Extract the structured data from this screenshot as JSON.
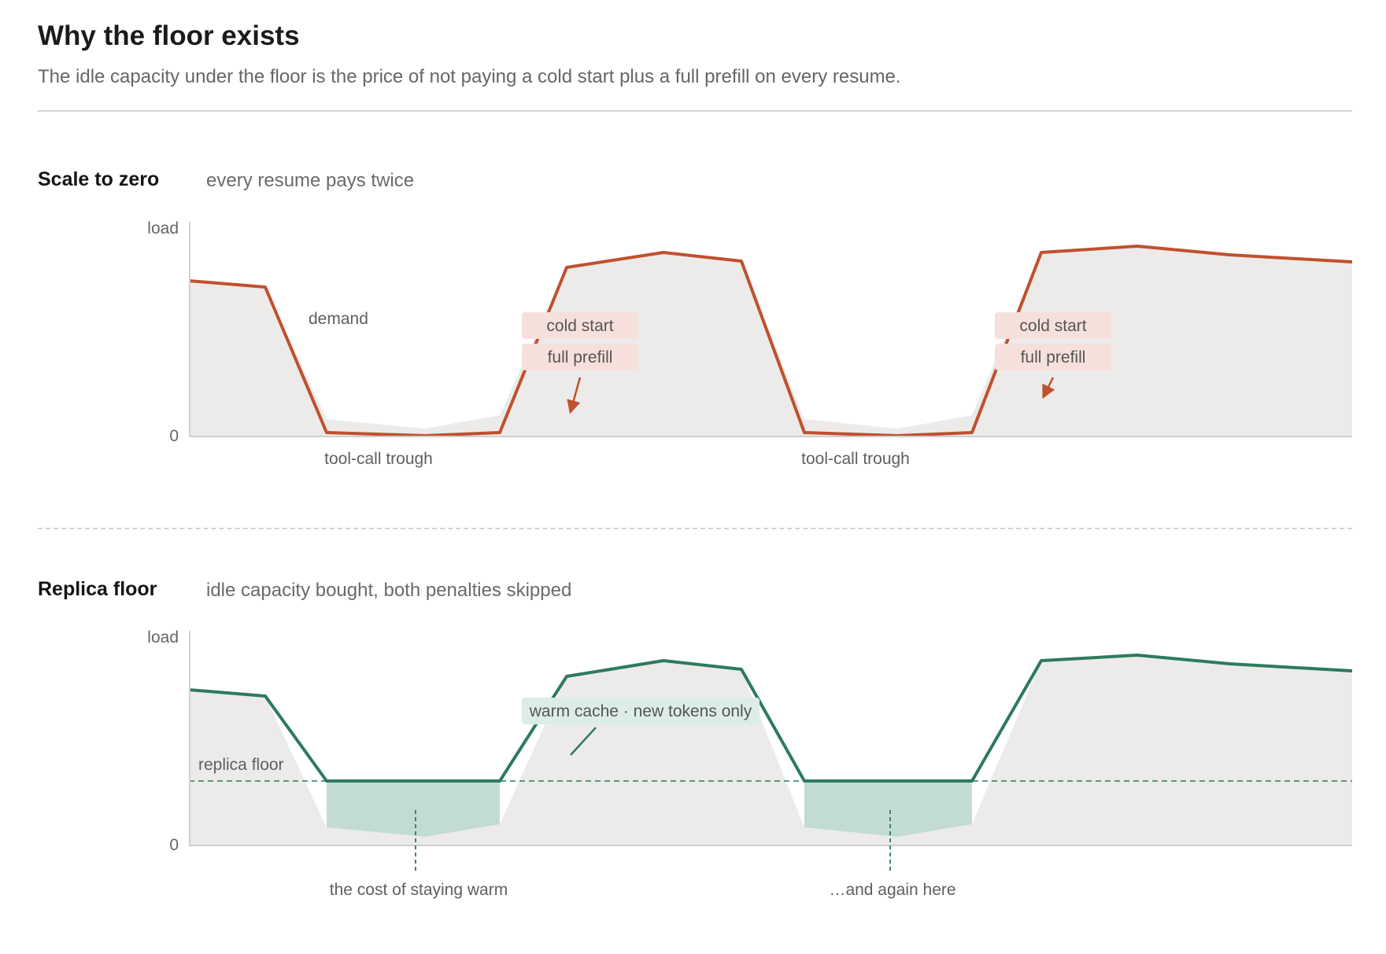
{
  "header": {
    "title": "Why the floor exists",
    "subtitle": "The idle capacity under the floor is the price of not paying a cold start plus a full prefill on every resume."
  },
  "panels": {
    "top": {
      "title": "Scale to zero",
      "note": "every resume pays twice",
      "y_top_label": "load",
      "y_zero_label": "0",
      "demand_label": "demand",
      "trough_labels": [
        "tool-call trough",
        "tool-call trough"
      ],
      "tags": [
        "cold start",
        "full prefill",
        "cold start",
        "full prefill"
      ]
    },
    "bottom": {
      "title": "Replica floor",
      "note": "idle capacity bought, both penalties skipped",
      "y_top_label": "load",
      "y_zero_label": "0",
      "floor_label": "replica floor",
      "tag": "warm cache · new tokens only",
      "cost_labels": [
        "the cost of staying warm",
        "…and again here"
      ]
    }
  },
  "colors": {
    "scale_to_zero_line": "#c0502f",
    "scale_to_zero_tag_bg": "#f6e0db",
    "replica_floor_line": "#2e7a5e",
    "replica_floor_tag_bg": "#dcede5",
    "idle_cost_fill": "#c2dcd1",
    "demand_area": "#ecebe9"
  },
  "chart_data": [
    {
      "type": "area",
      "title": "Scale to zero",
      "ylabel": "load",
      "ylim": [
        0,
        1
      ],
      "series": [
        {
          "x": [
            0,
            0.066,
            0.12,
            0.2,
            0.27,
            0.325,
            0.41,
            0.475,
            0.535,
            0.61,
            0.675,
            0.735,
            0.815,
            0.9,
            1.0
          ],
          "values": [
            0.74,
            0.72,
            0.02,
            0.0,
            0.02,
            0.81,
            0.88,
            0.84,
            0.02,
            0.0,
            0.02,
            0.88,
            0.91,
            0.87,
            0.84
          ]
        }
      ],
      "annotations": [
        "demand",
        "cold start",
        "full prefill",
        "tool-call trough"
      ]
    },
    {
      "type": "area",
      "title": "Replica floor",
      "ylabel": "load",
      "ylim": [
        0,
        1
      ],
      "floor": 0.3,
      "series": [
        {
          "x": [
            0,
            0.066,
            0.12,
            0.2,
            0.27,
            0.325,
            0.41,
            0.475,
            0.535,
            0.61,
            0.675,
            0.735,
            0.815,
            0.9,
            1.0
          ],
          "values": [
            0.74,
            0.72,
            0.3,
            0.3,
            0.3,
            0.81,
            0.88,
            0.84,
            0.3,
            0.3,
            0.3,
            0.88,
            0.91,
            0.87,
            0.84
          ]
        }
      ],
      "annotations": [
        "replica floor",
        "warm cache · new tokens only",
        "the cost of staying warm",
        "…and again here"
      ]
    }
  ]
}
